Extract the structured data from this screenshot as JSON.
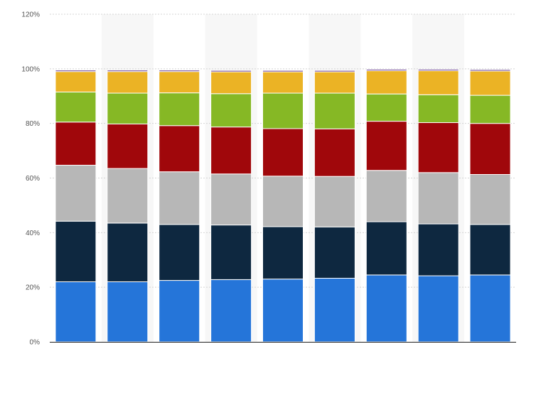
{
  "chart_data": {
    "type": "bar",
    "stacked": true,
    "title": "",
    "xlabel": "",
    "ylabel": "",
    "ylim": [
      0,
      120
    ],
    "y_ticks": [
      "0%",
      "20%",
      "40%",
      "60%",
      "80%",
      "100%",
      "120%"
    ],
    "y_tick_values": [
      0,
      20,
      40,
      60,
      80,
      100,
      120
    ],
    "grid": true,
    "alternating_column_bands": true,
    "categories": [
      "",
      "",
      "",
      "",
      "",
      "",
      "",
      "",
      ""
    ],
    "series": [
      {
        "color": "#2575d9",
        "values": [
          22.0,
          22.0,
          22.5,
          22.8,
          23.0,
          23.3,
          24.5,
          24.2,
          24.5
        ]
      },
      {
        "color": "#0e2840",
        "values": [
          22.2,
          21.5,
          20.5,
          20.0,
          19.2,
          18.8,
          19.5,
          19.0,
          18.5
        ]
      },
      {
        "color": "#b7b7b7",
        "values": [
          20.5,
          20.0,
          19.3,
          18.7,
          18.5,
          18.5,
          18.8,
          18.8,
          18.3
        ]
      },
      {
        "color": "#a0070b",
        "values": [
          15.8,
          16.3,
          16.9,
          17.2,
          17.4,
          17.4,
          18.0,
          18.3,
          18.7
        ]
      },
      {
        "color": "#86b825",
        "values": [
          11.0,
          11.3,
          12.0,
          12.2,
          13.0,
          13.1,
          10.0,
          10.2,
          10.3
        ]
      },
      {
        "color": "#ebb325",
        "values": [
          7.5,
          7.9,
          7.8,
          8.0,
          7.8,
          7.8,
          8.5,
          8.8,
          8.9
        ]
      },
      {
        "color": "#5b2d8a",
        "values": [
          0.5,
          0.5,
          0.5,
          0.5,
          0.5,
          0.5,
          0.5,
          0.5,
          0.5
        ]
      }
    ]
  }
}
